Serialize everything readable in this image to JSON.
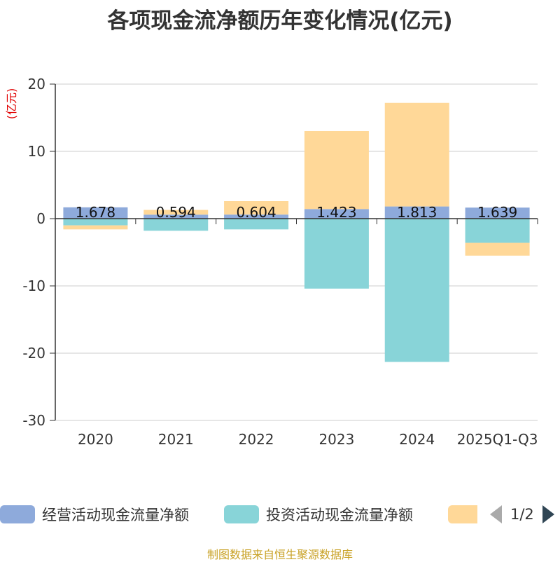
{
  "chart_data": {
    "type": "bar",
    "stacked": true,
    "title": "各项现金流净额历年变化情况(亿元)",
    "ylabel": "(亿元)",
    "xlabel": "",
    "categories": [
      "2020",
      "2021",
      "2022",
      "2023",
      "2024",
      "2025Q1-Q3"
    ],
    "ylim": [
      -30,
      20
    ],
    "yticks": [
      20,
      10,
      0,
      -10,
      -20,
      -30
    ],
    "series": [
      {
        "name": "经营活动现金流量净额",
        "color": "#8eaadb",
        "values": [
          1.678,
          0.594,
          0.604,
          1.423,
          1.813,
          1.639
        ],
        "labels": [
          "1.678",
          "0.594",
          "0.604",
          "1.423",
          "1.813",
          "1.639"
        ]
      },
      {
        "name": "投资活动现金流量净额",
        "color": "#88d4d8",
        "values": [
          -1.0,
          -1.8,
          -1.6,
          -10.4,
          -21.3,
          -3.6
        ]
      },
      {
        "name": "",
        "color": "#ffd898",
        "values": [
          -0.6,
          0.7,
          2.0,
          11.6,
          15.4,
          -1.9
        ]
      }
    ],
    "grid": true,
    "legend_position": "bottom"
  },
  "legend": {
    "page_indicator": "1/2"
  },
  "source": "制图数据来自恒生聚源数据库"
}
